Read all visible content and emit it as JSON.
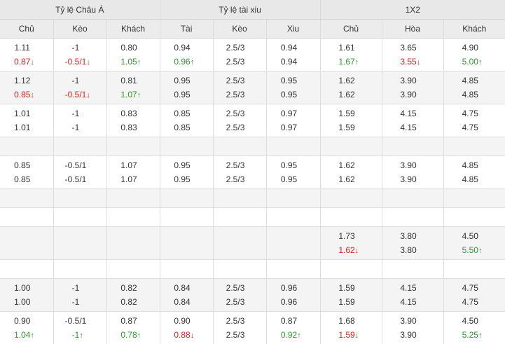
{
  "headers": {
    "groups": [
      "Tỷ lệ Châu Á",
      "Tỷ lệ tài xiu",
      "1X2"
    ],
    "columns": [
      "Chủ",
      "Kèo",
      "Khách",
      "Tài",
      "Kèo",
      "Xiu",
      "Chủ",
      "Hòa",
      "Khách"
    ]
  },
  "arrow_glyphs": {
    "up": "↑",
    "down": "↓"
  },
  "colors": {
    "up": "#2e9a2e",
    "down": "#e02020",
    "normal": "#333333",
    "header_bg": "#e8e8e8",
    "alt_row_bg": "#f4f4f4"
  },
  "groups": [
    {
      "rows": [
        [
          {
            "v": "1.11"
          },
          {
            "v": "-1"
          },
          {
            "v": "0.80"
          },
          {
            "v": "0.94"
          },
          {
            "v": "2.5/3"
          },
          {
            "v": "0.94"
          },
          {
            "v": "1.61"
          },
          {
            "v": "3.65"
          },
          {
            "v": "4.90"
          }
        ],
        [
          {
            "v": "0.87",
            "t": "down"
          },
          {
            "v": "-0.5/1",
            "t": "down"
          },
          {
            "v": "1.05",
            "t": "up"
          },
          {
            "v": "0.96",
            "t": "up"
          },
          {
            "v": "2.5/3"
          },
          {
            "v": "0.94"
          },
          {
            "v": "1.67",
            "t": "up"
          },
          {
            "v": "3.55",
            "t": "down"
          },
          {
            "v": "5.00",
            "t": "up"
          }
        ]
      ]
    },
    {
      "rows": [
        [
          {
            "v": "1.12"
          },
          {
            "v": "-1"
          },
          {
            "v": "0.81"
          },
          {
            "v": "0.95"
          },
          {
            "v": "2.5/3"
          },
          {
            "v": "0.95"
          },
          {
            "v": "1.62"
          },
          {
            "v": "3.90"
          },
          {
            "v": "4.85"
          }
        ],
        [
          {
            "v": "0.85",
            "t": "down"
          },
          {
            "v": "-0.5/1",
            "t": "down"
          },
          {
            "v": "1.07",
            "t": "up"
          },
          {
            "v": "0.95"
          },
          {
            "v": "2.5/3"
          },
          {
            "v": "0.95"
          },
          {
            "v": "1.62"
          },
          {
            "v": "3.90"
          },
          {
            "v": "4.85"
          }
        ]
      ]
    },
    {
      "rows": [
        [
          {
            "v": "1.01"
          },
          {
            "v": "-1"
          },
          {
            "v": "0.83"
          },
          {
            "v": "0.85"
          },
          {
            "v": "2.5/3"
          },
          {
            "v": "0.97"
          },
          {
            "v": "1.59"
          },
          {
            "v": "4.15"
          },
          {
            "v": "4.75"
          }
        ],
        [
          {
            "v": "1.01"
          },
          {
            "v": "-1"
          },
          {
            "v": "0.83"
          },
          {
            "v": "0.85"
          },
          {
            "v": "2.5/3"
          },
          {
            "v": "0.97"
          },
          {
            "v": "1.59"
          },
          {
            "v": "4.15"
          },
          {
            "v": "4.75"
          }
        ]
      ]
    },
    {
      "rows": [
        [
          {
            "v": ""
          },
          {
            "v": ""
          },
          {
            "v": ""
          },
          {
            "v": ""
          },
          {
            "v": ""
          },
          {
            "v": ""
          },
          {
            "v": ""
          },
          {
            "v": ""
          },
          {
            "v": ""
          }
        ]
      ]
    },
    {
      "rows": [
        [
          {
            "v": "0.85"
          },
          {
            "v": "-0.5/1"
          },
          {
            "v": "1.07"
          },
          {
            "v": "0.95"
          },
          {
            "v": "2.5/3"
          },
          {
            "v": "0.95"
          },
          {
            "v": "1.62"
          },
          {
            "v": "3.90"
          },
          {
            "v": "4.85"
          }
        ],
        [
          {
            "v": "0.85"
          },
          {
            "v": "-0.5/1"
          },
          {
            "v": "1.07"
          },
          {
            "v": "0.95"
          },
          {
            "v": "2.5/3"
          },
          {
            "v": "0.95"
          },
          {
            "v": "1.62"
          },
          {
            "v": "3.90"
          },
          {
            "v": "4.85"
          }
        ]
      ]
    },
    {
      "rows": [
        [
          {
            "v": ""
          },
          {
            "v": ""
          },
          {
            "v": ""
          },
          {
            "v": ""
          },
          {
            "v": ""
          },
          {
            "v": ""
          },
          {
            "v": ""
          },
          {
            "v": ""
          },
          {
            "v": ""
          }
        ]
      ]
    },
    {
      "rows": [
        [
          {
            "v": ""
          },
          {
            "v": ""
          },
          {
            "v": ""
          },
          {
            "v": ""
          },
          {
            "v": ""
          },
          {
            "v": ""
          },
          {
            "v": ""
          },
          {
            "v": ""
          },
          {
            "v": ""
          }
        ]
      ]
    },
    {
      "rows": [
        [
          {
            "v": ""
          },
          {
            "v": ""
          },
          {
            "v": ""
          },
          {
            "v": ""
          },
          {
            "v": ""
          },
          {
            "v": ""
          },
          {
            "v": "1.73"
          },
          {
            "v": "3.80"
          },
          {
            "v": "4.50"
          }
        ],
        [
          {
            "v": ""
          },
          {
            "v": ""
          },
          {
            "v": ""
          },
          {
            "v": ""
          },
          {
            "v": ""
          },
          {
            "v": ""
          },
          {
            "v": "1.62",
            "t": "down"
          },
          {
            "v": "3.80"
          },
          {
            "v": "5.50",
            "t": "up"
          }
        ]
      ]
    },
    {
      "rows": [
        [
          {
            "v": ""
          },
          {
            "v": ""
          },
          {
            "v": ""
          },
          {
            "v": ""
          },
          {
            "v": ""
          },
          {
            "v": ""
          },
          {
            "v": ""
          },
          {
            "v": ""
          },
          {
            "v": ""
          }
        ]
      ]
    },
    {
      "rows": [
        [
          {
            "v": "1.00"
          },
          {
            "v": "-1"
          },
          {
            "v": "0.82"
          },
          {
            "v": "0.84"
          },
          {
            "v": "2.5/3"
          },
          {
            "v": "0.96"
          },
          {
            "v": "1.59"
          },
          {
            "v": "4.15"
          },
          {
            "v": "4.75"
          }
        ],
        [
          {
            "v": "1.00"
          },
          {
            "v": "-1"
          },
          {
            "v": "0.82"
          },
          {
            "v": "0.84"
          },
          {
            "v": "2.5/3"
          },
          {
            "v": "0.96"
          },
          {
            "v": "1.59"
          },
          {
            "v": "4.15"
          },
          {
            "v": "4.75"
          }
        ]
      ]
    },
    {
      "rows": [
        [
          {
            "v": "0.90"
          },
          {
            "v": "-0.5/1"
          },
          {
            "v": "0.87"
          },
          {
            "v": "0.90"
          },
          {
            "v": "2.5/3"
          },
          {
            "v": "0.87"
          },
          {
            "v": "1.68"
          },
          {
            "v": "3.90"
          },
          {
            "v": "4.50"
          }
        ],
        [
          {
            "v": "1.04",
            "t": "up"
          },
          {
            "v": "-1",
            "t": "up"
          },
          {
            "v": "0.78",
            "t": "up"
          },
          {
            "v": "0.88",
            "t": "down"
          },
          {
            "v": "2.5/3"
          },
          {
            "v": "0.92",
            "t": "up"
          },
          {
            "v": "1.59",
            "t": "down"
          },
          {
            "v": "3.90"
          },
          {
            "v": "5.25",
            "t": "up"
          }
        ]
      ]
    }
  ]
}
